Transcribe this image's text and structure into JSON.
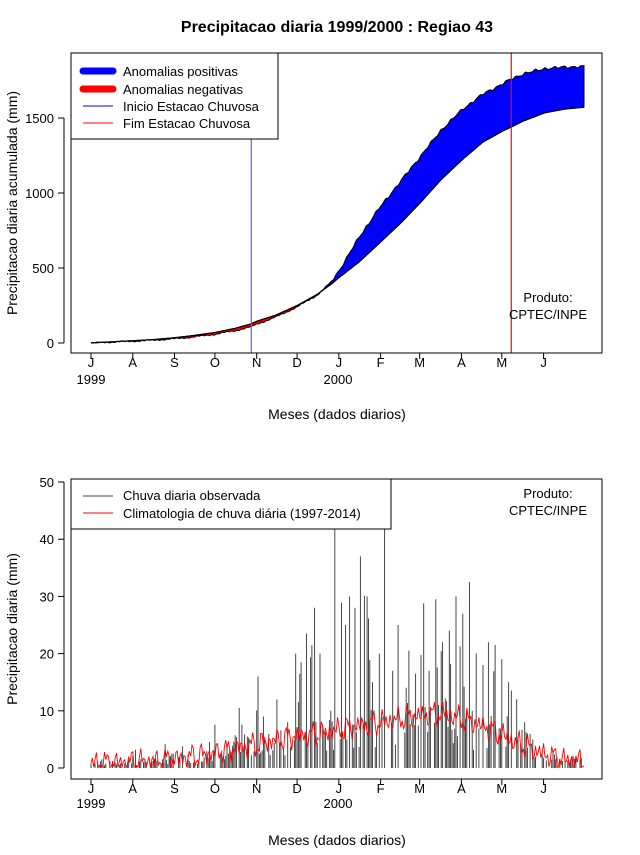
{
  "chart_data": [
    {
      "type": "area",
      "title": "Precipitacao diaria 1999/2000 : Regiao 43",
      "xlabel": "Meses (dados diarios)",
      "ylabel": "Precipitacao diaria acumulada (mm)",
      "ylim": [
        0,
        1900
      ],
      "yticks": [
        0,
        500,
        1000,
        1500
      ],
      "month_ticks": [
        "J",
        "A",
        "S",
        "O",
        "N",
        "D",
        "J",
        "F",
        "M",
        "A",
        "M",
        "J"
      ],
      "year_labels": [
        "1999",
        "2000"
      ],
      "legend": [
        {
          "label": "Anomalias positivas",
          "color": "#0000ff",
          "style": "thick"
        },
        {
          "label": "Anomalias negativas",
          "color": "#ff0000",
          "style": "thick"
        },
        {
          "label": "Inicio Estacao Chuvosa",
          "color": "#0000ff",
          "style": "thin"
        },
        {
          "label": "Fim Estacao Chuvosa",
          "color": "#ff0000",
          "style": "thin"
        }
      ],
      "annotation": [
        "Produto:",
        "CPTEC/INPE"
      ],
      "rain_season_start_day": 119,
      "rain_season_end_day": 312,
      "days": [
        0,
        15,
        31,
        45,
        62,
        76,
        92,
        107,
        119,
        123,
        137,
        153,
        168,
        178,
        184,
        199,
        214,
        230,
        245,
        260,
        276,
        291,
        306,
        312,
        321,
        337,
        352,
        366
      ],
      "climatology": [
        0,
        8,
        15,
        22,
        35,
        50,
        70,
        98,
        128,
        145,
        185,
        250,
        325,
        390,
        435,
        540,
        665,
        800,
        940,
        1090,
        1225,
        1340,
        1415,
        1440,
        1480,
        1535,
        1560,
        1572
      ],
      "observed": [
        0,
        6,
        12,
        18,
        28,
        40,
        58,
        82,
        108,
        125,
        172,
        240,
        320,
        405,
        480,
        705,
        900,
        1080,
        1250,
        1420,
        1560,
        1660,
        1730,
        1760,
        1795,
        1830,
        1840,
        1843
      ],
      "colors": {
        "positive": "#0000ff",
        "negative": "#ff0000",
        "season_start": "#4a6fdc",
        "season_end": "#ff0000"
      }
    },
    {
      "type": "bar",
      "xlabel": "Meses (dados diarios)",
      "ylabel": "Precipitacao diaria (mm)",
      "ylim": [
        0,
        50
      ],
      "yticks": [
        0,
        10,
        20,
        30,
        40,
        50
      ],
      "month_ticks": [
        "J",
        "A",
        "S",
        "O",
        "N",
        "D",
        "J",
        "F",
        "M",
        "A",
        "M",
        "J"
      ],
      "year_labels": [
        "1999",
        "2000"
      ],
      "legend": [
        {
          "label": "Chuva diaria observada",
          "color": "#444444"
        },
        {
          "label": "Climatologia de chuva diária (1997-2014)",
          "color": "#ff0000"
        }
      ],
      "annotation": [
        "Produto:",
        "CPTEC/INPE"
      ],
      "observed_peaks": [
        {
          "day": 8,
          "value": 1.5
        },
        {
          "day": 22,
          "value": 0.8
        },
        {
          "day": 33,
          "value": 3.2
        },
        {
          "day": 45,
          "value": 1.0
        },
        {
          "day": 55,
          "value": 4.2
        },
        {
          "day": 60,
          "value": 2.5
        },
        {
          "day": 68,
          "value": 3.8
        },
        {
          "day": 80,
          "value": 1.5
        },
        {
          "day": 92,
          "value": 7.6
        },
        {
          "day": 97,
          "value": 3.0
        },
        {
          "day": 102,
          "value": 2.5
        },
        {
          "day": 110,
          "value": 10.5
        },
        {
          "day": 116,
          "value": 5.5
        },
        {
          "day": 124,
          "value": 16.0
        },
        {
          "day": 128,
          "value": 9.0
        },
        {
          "day": 138,
          "value": 12.0
        },
        {
          "day": 146,
          "value": 8.0
        },
        {
          "day": 152,
          "value": 20.0
        },
        {
          "day": 156,
          "value": 18.5
        },
        {
          "day": 160,
          "value": 23.5
        },
        {
          "day": 166,
          "value": 28.0
        },
        {
          "day": 170,
          "value": 20.0
        },
        {
          "day": 178,
          "value": 10.0
        },
        {
          "day": 181,
          "value": 46.0
        },
        {
          "day": 189,
          "value": 25.0
        },
        {
          "day": 192,
          "value": 30.0
        },
        {
          "day": 196,
          "value": 28.0
        },
        {
          "day": 200,
          "value": 37.0
        },
        {
          "day": 205,
          "value": 30.0
        },
        {
          "day": 209,
          "value": 15.0
        },
        {
          "day": 214,
          "value": 20.0
        },
        {
          "day": 218,
          "value": 46.0
        },
        {
          "day": 224,
          "value": 17.0
        },
        {
          "day": 228,
          "value": 25.0
        },
        {
          "day": 236,
          "value": 20.5
        },
        {
          "day": 241,
          "value": 16.5
        },
        {
          "day": 247,
          "value": 28.8
        },
        {
          "day": 251,
          "value": 17.0
        },
        {
          "day": 256,
          "value": 29.5
        },
        {
          "day": 261,
          "value": 22.0
        },
        {
          "day": 266,
          "value": 24.0
        },
        {
          "day": 271,
          "value": 30.0
        },
        {
          "day": 276,
          "value": 27.0
        },
        {
          "day": 281,
          "value": 32.5
        },
        {
          "day": 286,
          "value": 20.0
        },
        {
          "day": 291,
          "value": 18.0
        },
        {
          "day": 295,
          "value": 22.0
        },
        {
          "day": 300,
          "value": 21.5
        },
        {
          "day": 305,
          "value": 19.0
        },
        {
          "day": 310,
          "value": 15.0
        },
        {
          "day": 316,
          "value": 12.0
        },
        {
          "day": 322,
          "value": 8.0
        },
        {
          "day": 328,
          "value": 5.0
        },
        {
          "day": 335,
          "value": 2.5
        },
        {
          "day": 343,
          "value": 3.0
        },
        {
          "day": 350,
          "value": 1.2
        },
        {
          "day": 358,
          "value": 2.0
        },
        {
          "day": 364,
          "value": 1.8
        }
      ],
      "climatology_curve": [
        {
          "day": 0,
          "value": 0.8
        },
        {
          "day": 30,
          "value": 1.0
        },
        {
          "day": 60,
          "value": 1.5
        },
        {
          "day": 90,
          "value": 2.5
        },
        {
          "day": 110,
          "value": 3.5
        },
        {
          "day": 130,
          "value": 4.5
        },
        {
          "day": 150,
          "value": 5.5
        },
        {
          "day": 170,
          "value": 6.0
        },
        {
          "day": 190,
          "value": 7.0
        },
        {
          "day": 215,
          "value": 8.0
        },
        {
          "day": 240,
          "value": 9.0
        },
        {
          "day": 260,
          "value": 9.5
        },
        {
          "day": 275,
          "value": 8.5
        },
        {
          "day": 295,
          "value": 7.0
        },
        {
          "day": 315,
          "value": 4.5
        },
        {
          "day": 335,
          "value": 2.5
        },
        {
          "day": 350,
          "value": 1.5
        },
        {
          "day": 366,
          "value": 1.0
        }
      ]
    }
  ]
}
